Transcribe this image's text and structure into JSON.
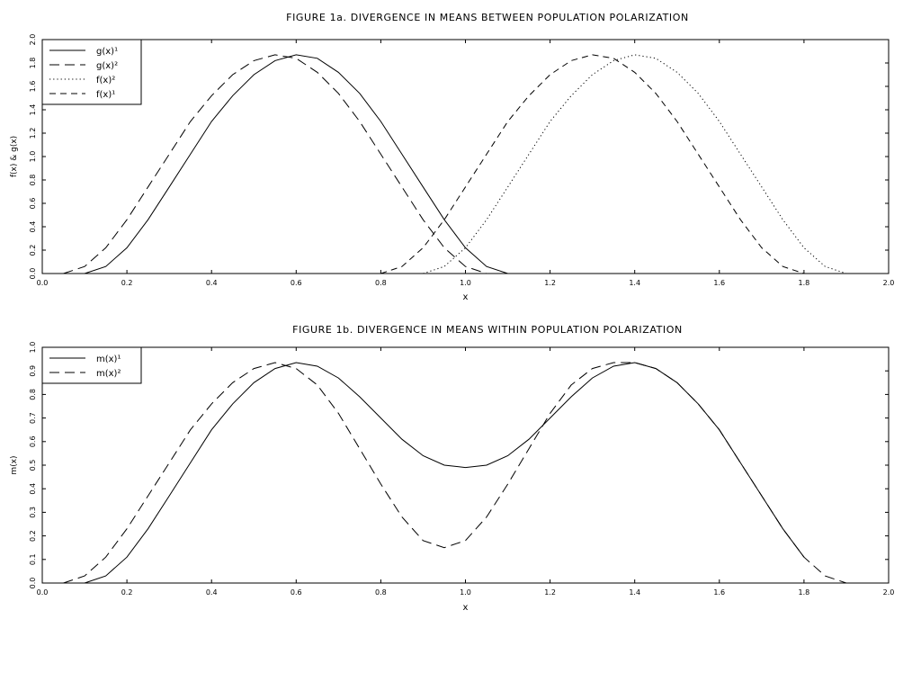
{
  "charts": [
    {
      "type": "line",
      "title": "FIGURE 1a. DIVERGENCE IN MEANS BETWEEN POPULATION POLARIZATION",
      "xlabel": "x",
      "ylabel": "f(x) & g(x)",
      "xlim": [
        0.0,
        2.0
      ],
      "ylim": [
        0.0,
        2.0
      ],
      "xticks": [
        "0.0",
        "0.2",
        "0.4",
        "0.6",
        "0.8",
        "1.0",
        "1.2",
        "1.4",
        "1.6",
        "1.8",
        "2.0"
      ],
      "yticks": [
        "0.0",
        "0.2",
        "0.4",
        "0.6",
        "0.8",
        "1.0",
        "1.2",
        "1.4",
        "1.6",
        "1.8",
        "2.0"
      ],
      "legend_position": "top-left",
      "legend": [
        {
          "label": "g(x)¹",
          "style": "solid"
        },
        {
          "label": "g(x)²",
          "style": "longdash"
        },
        {
          "label": "f(x)²",
          "style": "dotted"
        },
        {
          "label": "f(x)¹",
          "style": "dashed"
        }
      ],
      "series": [
        {
          "name": "g(x)¹",
          "style": "solid",
          "x": [
            0.1,
            0.15,
            0.2,
            0.25,
            0.3,
            0.35,
            0.4,
            0.45,
            0.5,
            0.55,
            0.6,
            0.65,
            0.7,
            0.75,
            0.8,
            0.85,
            0.9,
            0.95,
            1.0,
            1.05,
            1.1
          ],
          "y": [
            0.0,
            0.06,
            0.22,
            0.46,
            0.74,
            1.02,
            1.3,
            1.52,
            1.7,
            1.82,
            1.87,
            1.84,
            1.72,
            1.54,
            1.3,
            1.02,
            0.74,
            0.46,
            0.22,
            0.06,
            0.0
          ]
        },
        {
          "name": "g(x)²",
          "style": "longdash",
          "x": [
            0.05,
            0.1,
            0.15,
            0.2,
            0.25,
            0.3,
            0.35,
            0.4,
            0.45,
            0.5,
            0.55,
            0.6,
            0.65,
            0.7,
            0.75,
            0.8,
            0.85,
            0.9,
            0.95,
            1.0,
            1.05
          ],
          "y": [
            0.0,
            0.06,
            0.22,
            0.46,
            0.74,
            1.02,
            1.3,
            1.52,
            1.7,
            1.82,
            1.87,
            1.84,
            1.72,
            1.54,
            1.3,
            1.02,
            0.74,
            0.46,
            0.22,
            0.06,
            0.0
          ]
        },
        {
          "name": "f(x)²",
          "style": "dotted",
          "x": [
            0.9,
            0.95,
            1.0,
            1.05,
            1.1,
            1.15,
            1.2,
            1.25,
            1.3,
            1.35,
            1.4,
            1.45,
            1.5,
            1.55,
            1.6,
            1.65,
            1.7,
            1.75,
            1.8,
            1.85,
            1.9
          ],
          "y": [
            0.0,
            0.06,
            0.22,
            0.46,
            0.74,
            1.02,
            1.3,
            1.52,
            1.7,
            1.82,
            1.87,
            1.84,
            1.72,
            1.54,
            1.3,
            1.02,
            0.74,
            0.46,
            0.22,
            0.06,
            0.0
          ]
        },
        {
          "name": "f(x)¹",
          "style": "dashed",
          "x": [
            0.8,
            0.85,
            0.9,
            0.95,
            1.0,
            1.05,
            1.1,
            1.15,
            1.2,
            1.25,
            1.3,
            1.35,
            1.4,
            1.45,
            1.5,
            1.55,
            1.6,
            1.65,
            1.7,
            1.75,
            1.8
          ],
          "y": [
            0.0,
            0.06,
            0.22,
            0.46,
            0.74,
            1.02,
            1.3,
            1.52,
            1.7,
            1.82,
            1.87,
            1.84,
            1.72,
            1.54,
            1.3,
            1.02,
            0.74,
            0.46,
            0.22,
            0.06,
            0.0
          ]
        }
      ]
    },
    {
      "type": "line",
      "title": "FIGURE 1b. DIVERGENCE IN MEANS WITHIN POPULATION POLARIZATION",
      "xlabel": "x",
      "ylabel": "m(x)",
      "xlim": [
        0.0,
        2.0
      ],
      "ylim": [
        0.0,
        1.0
      ],
      "xticks": [
        "0.0",
        "0.2",
        "0.4",
        "0.6",
        "0.8",
        "1.0",
        "1.2",
        "1.4",
        "1.6",
        "1.8",
        "2.0"
      ],
      "yticks": [
        "0.0",
        "0.1",
        "0.2",
        "0.3",
        "0.4",
        "0.5",
        "0.6",
        "0.7",
        "0.8",
        "0.9",
        "1.0"
      ],
      "legend_position": "top-left",
      "legend": [
        {
          "label": "m(x)¹",
          "style": "solid"
        },
        {
          "label": "m(x)²",
          "style": "longdash"
        }
      ],
      "series": [
        {
          "name": "m(x)¹",
          "style": "solid",
          "x": [
            0.1,
            0.15,
            0.2,
            0.25,
            0.3,
            0.35,
            0.4,
            0.45,
            0.5,
            0.55,
            0.6,
            0.65,
            0.7,
            0.75,
            0.8,
            0.85,
            0.9,
            0.95,
            1.0,
            1.05,
            1.1,
            1.15,
            1.2,
            1.25,
            1.3,
            1.35,
            1.4,
            1.45,
            1.5,
            1.55,
            1.6,
            1.65,
            1.7,
            1.75,
            1.8
          ],
          "y": [
            0.0,
            0.03,
            0.11,
            0.23,
            0.37,
            0.51,
            0.65,
            0.76,
            0.85,
            0.91,
            0.935,
            0.92,
            0.87,
            0.79,
            0.7,
            0.61,
            0.54,
            0.5,
            0.49,
            0.5,
            0.54,
            0.61,
            0.7,
            0.79,
            0.87,
            0.92,
            0.935,
            0.91,
            0.85,
            0.76,
            0.65,
            0.51,
            0.37,
            0.23,
            0.11
          ]
        },
        {
          "name": "m(x)²",
          "style": "longdash",
          "x": [
            0.05,
            0.1,
            0.15,
            0.2,
            0.25,
            0.3,
            0.35,
            0.4,
            0.45,
            0.5,
            0.55,
            0.6,
            0.65,
            0.7,
            0.75,
            0.8,
            0.85,
            0.9,
            0.95,
            1.0,
            1.05,
            1.1,
            1.15,
            1.2,
            1.25,
            1.3,
            1.35,
            1.4,
            1.45,
            1.5,
            1.55,
            1.6,
            1.65,
            1.7,
            1.75,
            1.8,
            1.85,
            1.9
          ],
          "y": [
            0.0,
            0.03,
            0.11,
            0.23,
            0.37,
            0.51,
            0.65,
            0.76,
            0.85,
            0.91,
            0.935,
            0.91,
            0.84,
            0.72,
            0.57,
            0.42,
            0.28,
            0.18,
            0.15,
            0.18,
            0.28,
            0.42,
            0.57,
            0.72,
            0.84,
            0.91,
            0.935,
            0.935,
            0.91,
            0.85,
            0.76,
            0.65,
            0.51,
            0.37,
            0.23,
            0.11,
            0.03,
            0.0
          ]
        }
      ]
    }
  ]
}
